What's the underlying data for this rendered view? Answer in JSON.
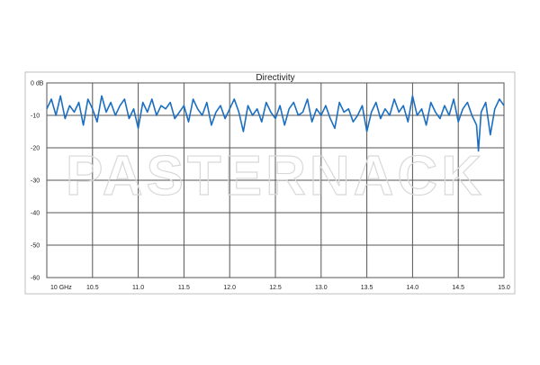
{
  "chart_data": {
    "type": "line",
    "title": "Directivity",
    "xlabel": "",
    "ylabel": "",
    "xlim": [
      10.0,
      15.0
    ],
    "ylim": [
      -60,
      0
    ],
    "grid": true,
    "legend": "none",
    "x_tick_labels": [
      "10 GHz",
      "10.5",
      "11.0",
      "11.5",
      "12.0",
      "12.5",
      "13.0",
      "13.5",
      "14.0",
      "14.5",
      "15.0"
    ],
    "x_ticks": [
      10.0,
      10.5,
      11.0,
      11.5,
      12.0,
      12.5,
      13.0,
      13.5,
      14.0,
      14.5,
      15.0
    ],
    "y_tick_labels": [
      "0 dB",
      "-10",
      "-20",
      "-30",
      "-40",
      "-50",
      "-60"
    ],
    "y_ticks": [
      0,
      -10,
      -20,
      -30,
      -40,
      -50,
      -60
    ],
    "series": [
      {
        "color": "#1c6fc0",
        "x": [
          10.0,
          10.05,
          10.1,
          10.15,
          10.2,
          10.25,
          10.3,
          10.35,
          10.4,
          10.45,
          10.5,
          10.55,
          10.6,
          10.65,
          10.7,
          10.75,
          10.8,
          10.85,
          10.9,
          10.95,
          11.0,
          11.05,
          11.1,
          11.15,
          11.2,
          11.25,
          11.3,
          11.35,
          11.4,
          11.45,
          11.5,
          11.55,
          11.6,
          11.65,
          11.7,
          11.75,
          11.8,
          11.85,
          11.9,
          11.95,
          12.0,
          12.05,
          12.1,
          12.15,
          12.2,
          12.25,
          12.3,
          12.35,
          12.4,
          12.45,
          12.5,
          12.55,
          12.6,
          12.65,
          12.7,
          12.75,
          12.8,
          12.85,
          12.9,
          12.95,
          13.0,
          13.05,
          13.1,
          13.15,
          13.2,
          13.25,
          13.3,
          13.35,
          13.4,
          13.45,
          13.5,
          13.55,
          13.6,
          13.65,
          13.7,
          13.75,
          13.8,
          13.85,
          13.9,
          13.95,
          14.0,
          14.05,
          14.1,
          14.15,
          14.2,
          14.25,
          14.3,
          14.35,
          14.4,
          14.45,
          14.5,
          14.55,
          14.6,
          14.65,
          14.7,
          14.72,
          14.75,
          14.8,
          14.85,
          14.9,
          14.95,
          15.0
        ],
        "y": [
          -8,
          -5,
          -10,
          -4,
          -11,
          -7,
          -9,
          -6,
          -13,
          -5,
          -8,
          -12,
          -4,
          -9,
          -6,
          -10,
          -7,
          -5,
          -11,
          -8,
          -14,
          -6,
          -9,
          -5,
          -10,
          -7,
          -8,
          -6,
          -11,
          -9,
          -7,
          -12,
          -5,
          -8,
          -10,
          -6,
          -13,
          -9,
          -7,
          -11,
          -8,
          -5,
          -9,
          -15,
          -7,
          -10,
          -8,
          -12,
          -6,
          -9,
          -11,
          -7,
          -13,
          -8,
          -6,
          -10,
          -9,
          -5,
          -12,
          -8,
          -10,
          -7,
          -11,
          -14,
          -6,
          -9,
          -8,
          -12,
          -10,
          -7,
          -15,
          -9,
          -6,
          -11,
          -8,
          -10,
          -5,
          -9,
          -7,
          -12,
          -4,
          -10,
          -8,
          -13,
          -6,
          -9,
          -11,
          -7,
          -10,
          -5,
          -12,
          -8,
          -6,
          -10,
          -13,
          -21,
          -9,
          -6,
          -16,
          -8,
          -5,
          -7
        ]
      }
    ]
  }
}
